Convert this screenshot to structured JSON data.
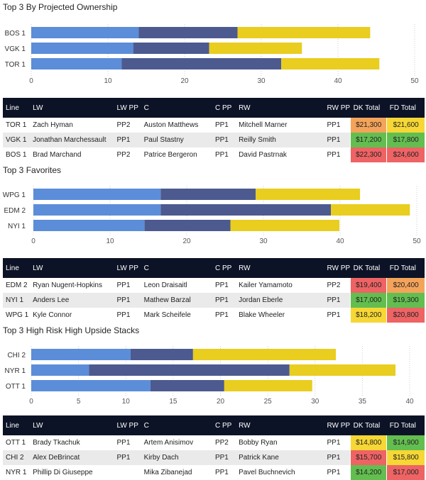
{
  "colors": {
    "bar_lw": "#5b8dd9",
    "bar_c": "#4c5a8f",
    "bar_rw": "#e9cd1f",
    "header_bg": "#0d1326",
    "cell_green": "#63be50",
    "cell_yellow": "#f6d735",
    "cell_orange": "#f4a45a",
    "cell_red": "#ee6364"
  },
  "sections": [
    {
      "title": "Top 3 By Projected Ownership",
      "chart_data": {
        "type": "bar",
        "orientation": "horizontal",
        "stacked": true,
        "categories": [
          "BOS 1",
          "VGK 1",
          "TOR 1"
        ],
        "series": [
          {
            "values": [
              14.0,
              13.3,
              11.8
            ]
          },
          {
            "values": [
              12.9,
              9.9,
              20.8
            ]
          },
          {
            "values": [
              17.3,
              12.1,
              12.8
            ]
          }
        ],
        "xlim": [
          0,
          50
        ],
        "xticks": [
          "0",
          "10",
          "20",
          "30",
          "40",
          "50"
        ],
        "grid": true
      },
      "table": {
        "headers": [
          "Line",
          "LW",
          "LW PP",
          "C",
          "C PP",
          "RW",
          "RW PP",
          "DK Total",
          "FD Total"
        ],
        "rows": [
          {
            "cells": [
              "TOR 1",
              "Zach Hyman",
              "PP2",
              "Auston Matthews",
              "PP1",
              "Mitchell Marner",
              "PP1",
              "$21,300",
              "$21,600"
            ],
            "dk_color": "orange",
            "fd_color": "yellow"
          },
          {
            "cells": [
              "VGK 1",
              "Jonathan Marchessault",
              "PP1",
              "Paul Stastny",
              "PP1",
              "Reilly Smith",
              "PP1",
              "$17,200",
              "$17,800"
            ],
            "dk_color": "green",
            "fd_color": "green"
          },
          {
            "cells": [
              "BOS 1",
              "Brad Marchand",
              "PP2",
              "Patrice Bergeron",
              "PP1",
              "David Pastrnak",
              "PP1",
              "$22,300",
              "$24,600"
            ],
            "dk_color": "red",
            "fd_color": "red"
          }
        ]
      }
    },
    {
      "title": "Top 3 Favorites",
      "chart_data": {
        "type": "bar",
        "orientation": "horizontal",
        "stacked": true,
        "categories": [
          "WPG 1",
          "EDM 2",
          "NYI 1"
        ],
        "series": [
          {
            "values": [
              16.6,
              16.6,
              14.5
            ]
          },
          {
            "values": [
              12.4,
              22.2,
              11.2
            ]
          },
          {
            "values": [
              13.6,
              10.3,
              14.2
            ]
          }
        ],
        "xlim": [
          0,
          50
        ],
        "xticks": [
          "0",
          "10",
          "20",
          "30",
          "40",
          "50"
        ],
        "grid": true
      },
      "table": {
        "headers": [
          "Line",
          "LW",
          "LW PP",
          "C",
          "C PP",
          "RW",
          "RW PP",
          "DK Total",
          "FD Total"
        ],
        "rows": [
          {
            "cells": [
              "EDM 2",
              "Ryan Nugent-Hopkins",
              "PP1",
              "Leon Draisaitl",
              "PP1",
              "Kailer Yamamoto",
              "PP2",
              "$19,400",
              "$20,400"
            ],
            "dk_color": "red",
            "fd_color": "orange"
          },
          {
            "cells": [
              "NYI 1",
              "Anders Lee",
              "PP1",
              "Mathew Barzal",
              "PP1",
              "Jordan Eberle",
              "PP1",
              "$17,000",
              "$19,300"
            ],
            "dk_color": "green",
            "fd_color": "green"
          },
          {
            "cells": [
              "WPG 1",
              "Kyle Connor",
              "PP1",
              "Mark Scheifele",
              "PP1",
              "Blake Wheeler",
              "PP1",
              "$18,200",
              "$20,800"
            ],
            "dk_color": "yellow",
            "fd_color": "red"
          }
        ]
      }
    },
    {
      "title": "Top 3 High Risk High Upside Stacks",
      "chart_data": {
        "type": "bar",
        "orientation": "horizontal",
        "stacked": true,
        "categories": [
          "CHI 2",
          "NYR 1",
          "OTT 1"
        ],
        "series": [
          {
            "values": [
              10.5,
              6.1,
              12.6
            ]
          },
          {
            "values": [
              6.6,
              21.2,
              7.8
            ]
          },
          {
            "values": [
              15.1,
              11.2,
              9.3
            ]
          }
        ],
        "xlim": [
          0,
          40
        ],
        "xticks": [
          "0",
          "5",
          "10",
          "15",
          "20",
          "25",
          "30",
          "35",
          "40"
        ],
        "grid": true
      },
      "table": {
        "headers": [
          "Line",
          "LW",
          "LW PP",
          "C",
          "C PP",
          "RW",
          "RW PP",
          "DK Total",
          "FD Total"
        ],
        "rows": [
          {
            "cells": [
              "OTT 1",
              "Brady Tkachuk",
              "PP1",
              "Artem Anisimov",
              "PP2",
              "Bobby Ryan",
              "PP1",
              "$14,800",
              "$14,900"
            ],
            "dk_color": "yellow",
            "fd_color": "green"
          },
          {
            "cells": [
              "CHI 2",
              "Alex DeBrincat",
              "PP1",
              "Kirby Dach",
              "PP1",
              "Patrick Kane",
              "PP1",
              "$15,700",
              "$15,800"
            ],
            "dk_color": "red",
            "fd_color": "yellow"
          },
          {
            "cells": [
              "NYR 1",
              "Phillip Di Giuseppe",
              "",
              "Mika Zibanejad",
              "PP1",
              "Pavel Buchnevich",
              "PP1",
              "$14,200",
              "$17,000"
            ],
            "dk_color": "green",
            "fd_color": "red"
          }
        ]
      }
    }
  ]
}
